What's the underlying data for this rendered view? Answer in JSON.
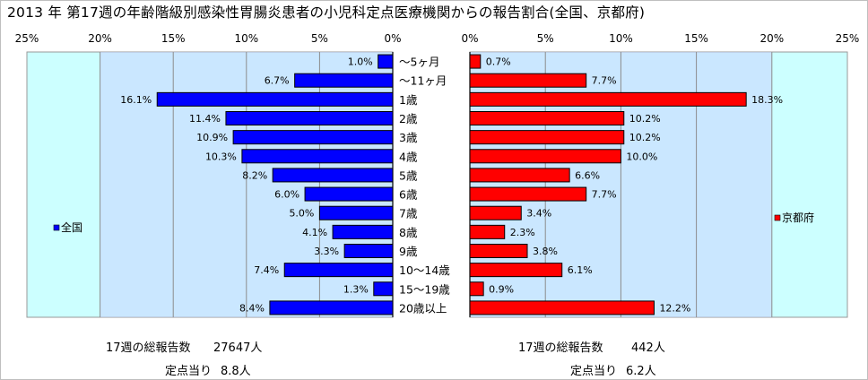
{
  "title": "2013 年 第17週の年齢階級別感染性胃腸炎患者の小児科定点医療機関からの報告割合(全国、京都府)",
  "colors": {
    "plot_bg": "#ccffff",
    "plot_band": "#c8d4ff",
    "national_bar": "#0000ff",
    "kyoto_bar": "#ff0000",
    "grid": "#8c8c8c"
  },
  "chart_data": {
    "type": "bar",
    "orientation": "horizontal-butterfly",
    "categories": [
      "～5ヶ月",
      "～11ヶ月",
      "1歳",
      "2歳",
      "3歳",
      "4歳",
      "5歳",
      "6歳",
      "7歳",
      "8歳",
      "9歳",
      "10～14歳",
      "15～19歳",
      "20歳以上"
    ],
    "left_axis_ticks": [
      "25%",
      "20%",
      "15%",
      "10%",
      "5%",
      "0%"
    ],
    "right_axis_ticks": [
      "0%",
      "5%",
      "10%",
      "15%",
      "20%",
      "25%"
    ],
    "xlim": [
      0,
      25
    ],
    "grid": true,
    "series": [
      {
        "name": "全国",
        "side": "left",
        "color": "#0000ff",
        "values": [
          1.0,
          6.7,
          16.1,
          11.4,
          10.9,
          10.3,
          8.2,
          6.0,
          5.0,
          4.1,
          3.3,
          7.4,
          1.3,
          8.4
        ],
        "labels": [
          "1.0%",
          "6.7%",
          "16.1%",
          "11.4%",
          "10.9%",
          "10.3%",
          "8.2%",
          "6.0%",
          "5.0%",
          "4.1%",
          "3.3%",
          "7.4%",
          "1.3%",
          "8.4%"
        ]
      },
      {
        "name": "京都府",
        "side": "right",
        "color": "#ff0000",
        "values": [
          0.7,
          7.7,
          18.3,
          10.2,
          10.2,
          10.0,
          6.6,
          7.7,
          3.4,
          2.3,
          3.8,
          6.1,
          0.9,
          12.2
        ],
        "labels": [
          "0.7%",
          "7.7%",
          "18.3%",
          "10.2%",
          "10.2%",
          "10.0%",
          "6.6%",
          "7.7%",
          "3.4%",
          "2.3%",
          "3.8%",
          "6.1%",
          "0.9%",
          "12.2%"
        ]
      }
    ],
    "legend": [
      "全国",
      "京都府"
    ]
  },
  "summary": {
    "national": {
      "total_label": "17週の総報告数",
      "total_value": "27647人",
      "per_site_label": "定点当り",
      "per_site_value": "8.8人"
    },
    "kyoto": {
      "total_label": "17週の総報告数",
      "total_value": "442人",
      "per_site_label": "定点当り",
      "per_site_value": "6.2人"
    }
  }
}
